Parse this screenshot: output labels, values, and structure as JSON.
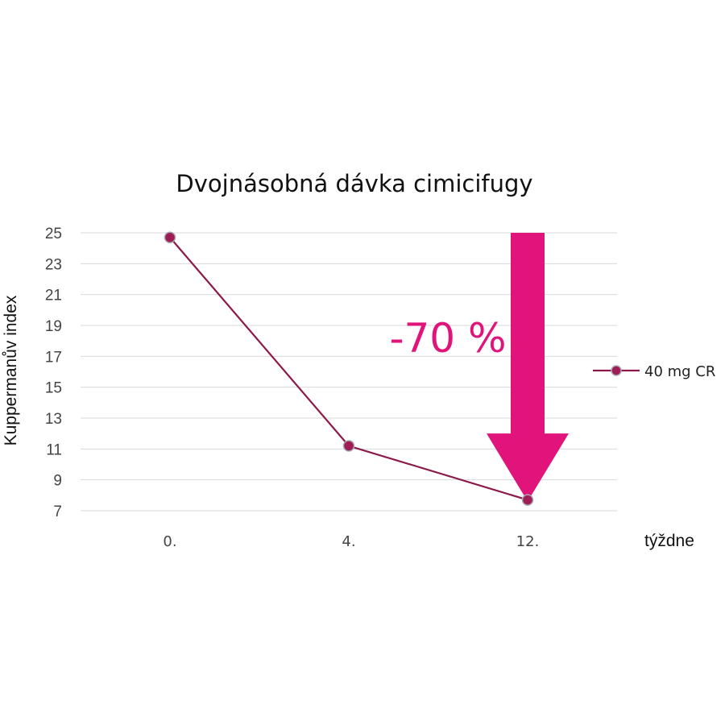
{
  "chart_data": {
    "type": "line",
    "title": "Dvojnásobná dávka cimicifugy",
    "xlabel": "týždne",
    "ylabel": "Kuppermanův index",
    "categories": [
      "0.",
      "4.",
      "12."
    ],
    "series": [
      {
        "name": "40 mg CR",
        "values": [
          24.7,
          11.2,
          7.7
        ],
        "color": "#8b1a4a",
        "marker_color": "#9e1d55"
      }
    ],
    "ylim": [
      7,
      25
    ],
    "yticks": [
      25,
      23,
      21,
      19,
      17,
      15,
      13,
      11,
      9,
      7
    ],
    "grid": true,
    "legend_position": "right",
    "annotation": {
      "text": "-70 %",
      "color": "#e0147a",
      "shape": "down-arrow"
    }
  }
}
